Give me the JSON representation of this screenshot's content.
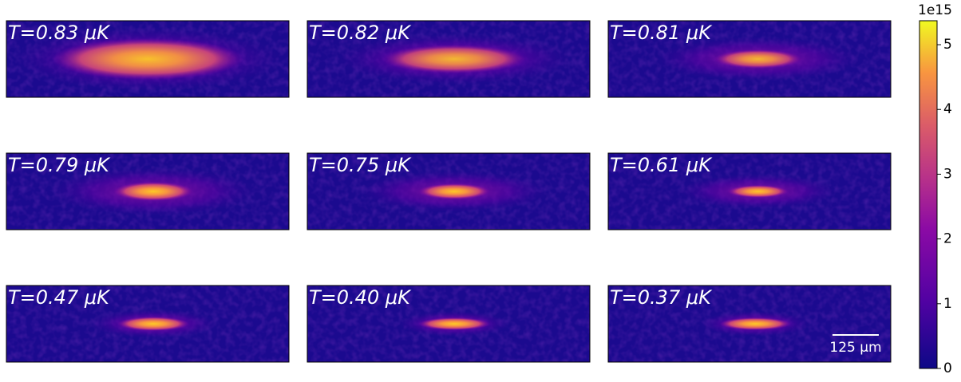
{
  "chart_data": {
    "type": "image-grid",
    "panels": [
      {
        "label": "T=0.83 μK"
      },
      {
        "label": "T=0.82 μK"
      },
      {
        "label": "T=0.81 μK"
      },
      {
        "label": "T=0.79 μK"
      },
      {
        "label": "T=0.75 μK"
      },
      {
        "label": "T=0.61 μK"
      },
      {
        "label": "T=0.47 μK"
      },
      {
        "label": "T=0.40 μK"
      },
      {
        "label": "T=0.37 μK"
      }
    ],
    "scale_bar": "125 μm",
    "colorbar": {
      "colormap": "plasma",
      "ylim": [
        0,
        5.37
      ],
      "yticks": [
        0,
        1,
        2,
        3,
        4,
        5
      ],
      "offset_label": "1e15"
    }
  }
}
